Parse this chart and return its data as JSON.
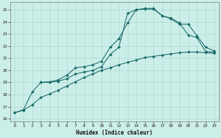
{
  "xlabel": "Humidex (Indice chaleur)",
  "bg_color": "#cceee8",
  "grid_color": "#aad8d2",
  "line_color": "#1a6b6b",
  "xlim": [
    -0.5,
    23.5
  ],
  "ylim": [
    15.8,
    25.6
  ],
  "xticks": [
    0,
    1,
    2,
    3,
    4,
    5,
    6,
    7,
    8,
    9,
    10,
    11,
    12,
    13,
    14,
    15,
    16,
    17,
    18,
    19,
    20,
    21,
    22,
    23
  ],
  "yticks": [
    16,
    17,
    18,
    19,
    20,
    21,
    22,
    23,
    24,
    25
  ],
  "curve1_x": [
    0,
    1,
    2,
    3,
    4,
    5,
    6,
    7,
    8,
    9,
    10,
    11,
    12,
    13,
    14,
    15,
    16,
    17,
    18,
    19,
    20,
    21,
    22,
    23
  ],
  "curve1_y": [
    16.5,
    16.75,
    18.2,
    19.0,
    19.0,
    19.1,
    19.3,
    19.7,
    19.85,
    20.0,
    20.3,
    21.3,
    21.9,
    24.7,
    25.0,
    25.05,
    25.05,
    24.5,
    24.3,
    23.9,
    22.9,
    22.7,
    21.55,
    21.5
  ],
  "curve2_x": [
    3,
    4,
    5,
    6,
    7,
    8,
    9,
    10,
    11,
    12,
    13,
    14,
    15,
    16,
    17,
    18,
    19,
    20,
    21,
    22,
    23
  ],
  "curve2_y": [
    19.0,
    19.05,
    19.2,
    19.6,
    20.2,
    20.3,
    20.45,
    20.75,
    21.9,
    22.6,
    23.9,
    25.0,
    25.1,
    25.1,
    24.5,
    24.25,
    23.8,
    23.8,
    22.85,
    21.9,
    21.6
  ],
  "curve3_x": [
    0,
    1,
    2,
    3,
    4,
    5,
    6,
    7,
    8,
    9,
    10,
    11,
    12,
    13,
    14,
    15,
    16,
    17,
    18,
    19,
    20,
    21,
    22,
    23
  ],
  "curve3_y": [
    16.5,
    16.7,
    17.15,
    17.75,
    18.05,
    18.35,
    18.7,
    19.05,
    19.4,
    19.7,
    20.0,
    20.2,
    20.45,
    20.65,
    20.85,
    21.05,
    21.15,
    21.25,
    21.35,
    21.45,
    21.5,
    21.5,
    21.45,
    21.4
  ]
}
